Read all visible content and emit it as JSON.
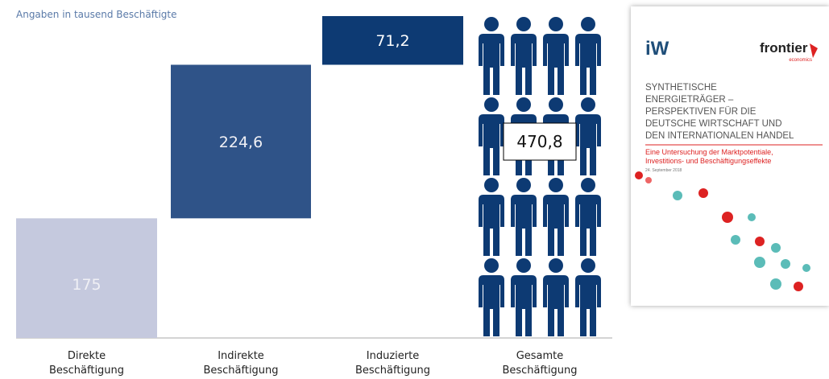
{
  "chart_data": {
    "type": "waterfall",
    "subtitle": "Angaben in tausend Beschäftigte",
    "categories": [
      "Direkte Beschäftigung",
      "Indirekte Beschäftigung",
      "Induzierte Beschäftigung",
      "Gesamte Beschäftigung"
    ],
    "values": [
      175,
      224.6,
      71.2,
      470.8
    ],
    "value_labels": [
      "175",
      "224,6",
      "71,2",
      "470,8"
    ],
    "colors": [
      "#c5c9de",
      "#2f5388",
      "#0d3a73",
      "#0d3a73"
    ]
  },
  "cover": {
    "logo_left": "iW",
    "logo_right": "frontier",
    "logo_right_sub": "economics",
    "title": [
      "SYNTHETISCHE",
      "ENERGIETRÄGER –",
      "PERSPEKTIVEN FÜR DIE",
      "DEUTSCHE WIRTSCHAFT UND",
      "DEN INTERNATIONALEN HANDEL"
    ],
    "subtitle": [
      "Eine Untersuchung der Marktpotentiale,",
      "Investitions- und Beschäftigungseffekte"
    ],
    "date": "24. September 2018"
  }
}
